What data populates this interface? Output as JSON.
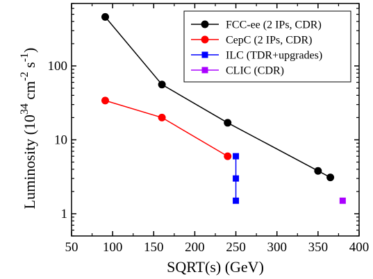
{
  "chart_data": {
    "type": "line",
    "xlabel": "SQRT(s) (GeV)",
    "ylabel": {
      "base": "Luminosity (10",
      "exp1": "34",
      "unit": " cm",
      "exp2": "-2",
      "unit2": " s",
      "exp3": "-1",
      "close": ")"
    },
    "xlim": [
      50,
      400
    ],
    "ylim": [
      0.5,
      700
    ],
    "yscale": "log",
    "xticks": [
      50,
      100,
      150,
      200,
      250,
      300,
      350,
      400
    ],
    "yticks": [
      {
        "value": 1,
        "label": "1"
      },
      {
        "value": 10,
        "label": "10"
      },
      {
        "value": 100,
        "label": "100"
      }
    ],
    "grid": false,
    "legend_position": "top-right",
    "series": [
      {
        "name": "FCC-ee (2 IPs, CDR)",
        "color": "#000000",
        "marker": "circle",
        "x": [
          91,
          160,
          240,
          350,
          365
        ],
        "y": [
          460,
          56,
          17,
          3.8,
          3.1
        ]
      },
      {
        "name": "CepC (2 IPs, CDR)",
        "color": "#ff0000",
        "marker": "circle",
        "x": [
          91,
          160,
          240
        ],
        "y": [
          34,
          20,
          6
        ]
      },
      {
        "name": "ILC (TDR+upgrades)",
        "color": "#0000ff",
        "marker": "square",
        "x": [
          250,
          250,
          250
        ],
        "y": [
          6,
          3,
          1.5
        ]
      },
      {
        "name": "CLIC (CDR)",
        "color": "#aa00ff",
        "marker": "square",
        "x": [
          380
        ],
        "y": [
          1.5
        ]
      }
    ]
  }
}
